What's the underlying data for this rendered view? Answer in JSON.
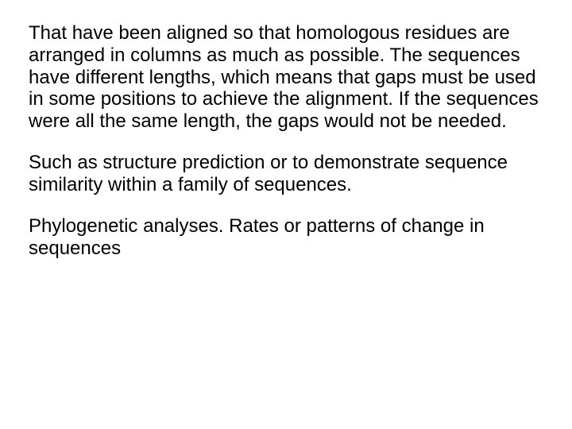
{
  "text": {
    "font_family": "Arial",
    "font_size_pt": 24,
    "color": "#000000",
    "background": "#ffffff"
  },
  "paragraphs": [
    "That have been aligned so that homologous residues are arranged in columns as much as possible. The sequences have different lengths, which means that gaps must be used in some positions to achieve the alignment. If the sequences were all the same length, the gaps would not be needed.",
    "Such as structure prediction or to demonstrate sequence similarity within a family of sequences.",
    "Phylogenetic analyses. Rates or patterns of change in sequences"
  ]
}
